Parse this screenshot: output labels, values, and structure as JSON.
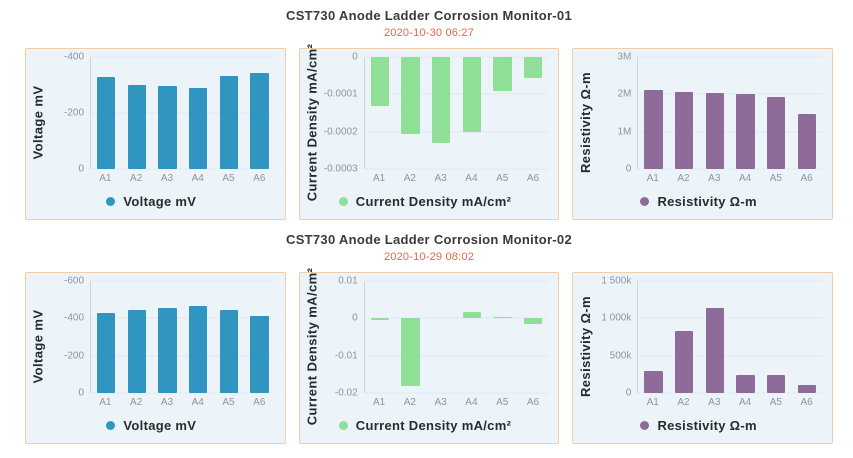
{
  "sections": [
    {
      "title": "CST730 Anode Ladder Corrosion Monitor-01",
      "timestamp": "2020-10-30 06:27"
    },
    {
      "title": "CST730 Anode Ladder Corrosion Monitor-02",
      "timestamp": "2020-10-29 08:02"
    }
  ],
  "colors": {
    "voltage": "#3096c1",
    "current_density": "#90df96",
    "resistivity": "#8e6b99",
    "timestamp_accent": "#e5664b",
    "panel_background": "#ecf4fa",
    "panel_border": "#f3cda9"
  },
  "chart_data": [
    {
      "type": "bar",
      "section": 0,
      "ylabel": "Voltage mV",
      "legend": "Voltage mV",
      "color": "#3096c1",
      "categories": [
        "A1",
        "A2",
        "A3",
        "A4",
        "A5",
        "A6"
      ],
      "values": [
        -330,
        -300,
        -297,
        -289,
        -333,
        -344
      ],
      "axis_top": -400,
      "axis_bottom": 0,
      "yticks": [
        {
          "label": "-400",
          "value": -400
        },
        {
          "label": "-200",
          "value": -200
        },
        {
          "label": "0",
          "value": 0
        }
      ]
    },
    {
      "type": "bar",
      "section": 0,
      "ylabel": "Current Density mA/cm²",
      "legend": "Current Density mA/cm²",
      "color": "#90df96",
      "categories": [
        "A1",
        "A2",
        "A3",
        "A4",
        "A5",
        "A6"
      ],
      "values": [
        -0.00013,
        -0.000205,
        -0.00023,
        -0.0002,
        -9e-05,
        -5.5e-05
      ],
      "axis_top": 0,
      "axis_bottom": -0.0003,
      "yticks": [
        {
          "label": "0",
          "value": 0
        },
        {
          "label": "-0.0001",
          "value": -0.0001
        },
        {
          "label": "-0.0002",
          "value": -0.0002
        },
        {
          "label": "-0.0003",
          "value": -0.0003
        }
      ]
    },
    {
      "type": "bar",
      "section": 0,
      "ylabel": "Resistivity Ω-m",
      "legend": "Resistivity Ω-m",
      "color": "#8e6b99",
      "categories": [
        "A1",
        "A2",
        "A3",
        "A4",
        "A5",
        "A6"
      ],
      "values": [
        2120000,
        2050000,
        2030000,
        2010000,
        1930000,
        1480000
      ],
      "axis_top": 3000000,
      "axis_bottom": 0,
      "yticks": [
        {
          "label": "3M",
          "value": 3000000
        },
        {
          "label": "2M",
          "value": 2000000
        },
        {
          "label": "1M",
          "value": 1000000
        },
        {
          "label": "0",
          "value": 0
        }
      ]
    },
    {
      "type": "bar",
      "section": 1,
      "ylabel": "Voltage mV",
      "legend": "Voltage mV",
      "color": "#3096c1",
      "categories": [
        "A1",
        "A2",
        "A3",
        "A4",
        "A5",
        "A6"
      ],
      "values": [
        -430,
        -444,
        -455,
        -468,
        -444,
        -410
      ],
      "axis_top": -600,
      "axis_bottom": 0,
      "yticks": [
        {
          "label": "-600",
          "value": -600
        },
        {
          "label": "-400",
          "value": -400
        },
        {
          "label": "-200",
          "value": -200
        },
        {
          "label": "0",
          "value": 0
        }
      ]
    },
    {
      "type": "bar",
      "section": 1,
      "ylabel": "Current Density mA/cm²",
      "legend": "Current Density mA/cm²",
      "color": "#90df96",
      "categories": [
        "A1",
        "A2",
        "A3",
        "A4",
        "A5",
        "A6"
      ],
      "values": [
        -0.0004,
        -0.018,
        0,
        0.0018,
        0.0003,
        -0.0014
      ],
      "axis_top": 0.01,
      "axis_bottom": -0.02,
      "yticks": [
        {
          "label": "0.01",
          "value": 0.01
        },
        {
          "label": "0",
          "value": 0
        },
        {
          "label": "-0.01",
          "value": -0.01
        },
        {
          "label": "-0.02",
          "value": -0.02
        }
      ]
    },
    {
      "type": "bar",
      "section": 1,
      "ylabel": "Resistivity Ω-m",
      "legend": "Resistivity Ω-m",
      "color": "#8e6b99",
      "categories": [
        "A1",
        "A2",
        "A3",
        "A4",
        "A5",
        "A6"
      ],
      "values": [
        290000,
        830000,
        1140000,
        245000,
        245000,
        105000
      ],
      "axis_top": 1500000,
      "axis_bottom": 0,
      "yticks": [
        {
          "label": "1 500k",
          "value": 1500000
        },
        {
          "label": "1 000k",
          "value": 1000000
        },
        {
          "label": "500k",
          "value": 500000
        },
        {
          "label": "0",
          "value": 0
        }
      ]
    }
  ]
}
